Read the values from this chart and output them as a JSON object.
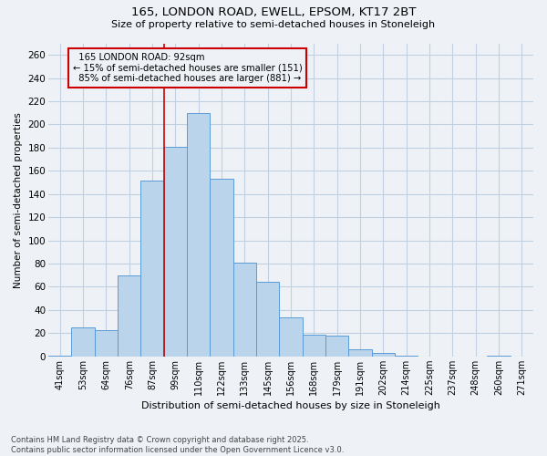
{
  "title1": "165, LONDON ROAD, EWELL, EPSOM, KT17 2BT",
  "title2": "Size of property relative to semi-detached houses in Stoneleigh",
  "xlabel": "Distribution of semi-detached houses by size in Stoneleigh",
  "ylabel": "Number of semi-detached properties",
  "categories": [
    "41sqm",
    "53sqm",
    "64sqm",
    "76sqm",
    "87sqm",
    "99sqm",
    "110sqm",
    "122sqm",
    "133sqm",
    "145sqm",
    "156sqm",
    "168sqm",
    "179sqm",
    "191sqm",
    "202sqm",
    "214sqm",
    "225sqm",
    "237sqm",
    "248sqm",
    "260sqm",
    "271sqm"
  ],
  "values": [
    1,
    25,
    23,
    70,
    152,
    181,
    210,
    153,
    81,
    64,
    34,
    19,
    18,
    6,
    3,
    1,
    0,
    0,
    0,
    1,
    0
  ],
  "bar_color": "#bad4ec",
  "bar_edge_color": "#5b9bd5",
  "property_label": "165 LONDON ROAD: 92sqm",
  "pct_smaller": 15,
  "count_smaller": 151,
  "pct_larger": 85,
  "count_larger": 881,
  "vline_color": "#cc0000",
  "annotation_box_color": "#cc0000",
  "grid_color": "#c0d0e0",
  "background_color": "#eef2f7",
  "ylim": [
    0,
    270
  ],
  "yticks": [
    0,
    20,
    40,
    60,
    80,
    100,
    120,
    140,
    160,
    180,
    200,
    220,
    240,
    260
  ],
  "footer1": "Contains HM Land Registry data © Crown copyright and database right 2025.",
  "footer2": "Contains public sector information licensed under the Open Government Licence v3.0."
}
